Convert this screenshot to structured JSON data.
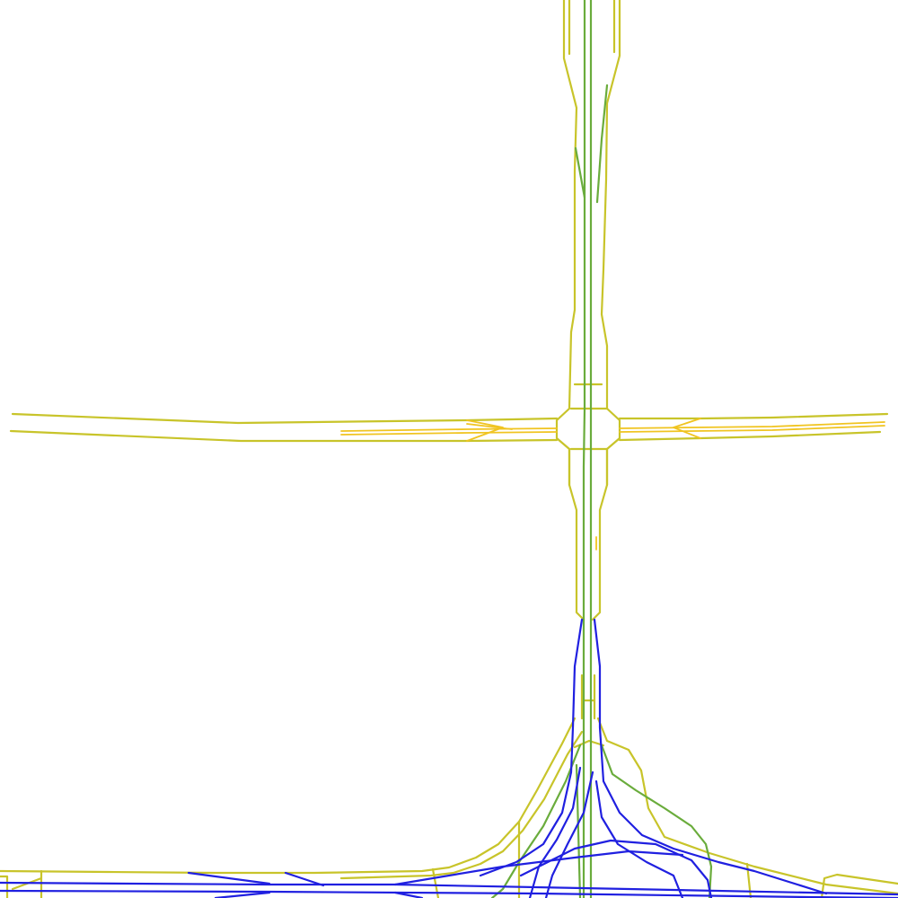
{
  "map": {
    "background": "#ffffff",
    "legend": "none",
    "layers": [
      {
        "name": "road-edges",
        "color": "#c8c42a"
      },
      {
        "name": "lane-lines",
        "color": "#f0c420"
      },
      {
        "name": "green-links",
        "color": "#6aac3c"
      },
      {
        "name": "blue-links",
        "color": "#2020e0"
      }
    ]
  }
}
